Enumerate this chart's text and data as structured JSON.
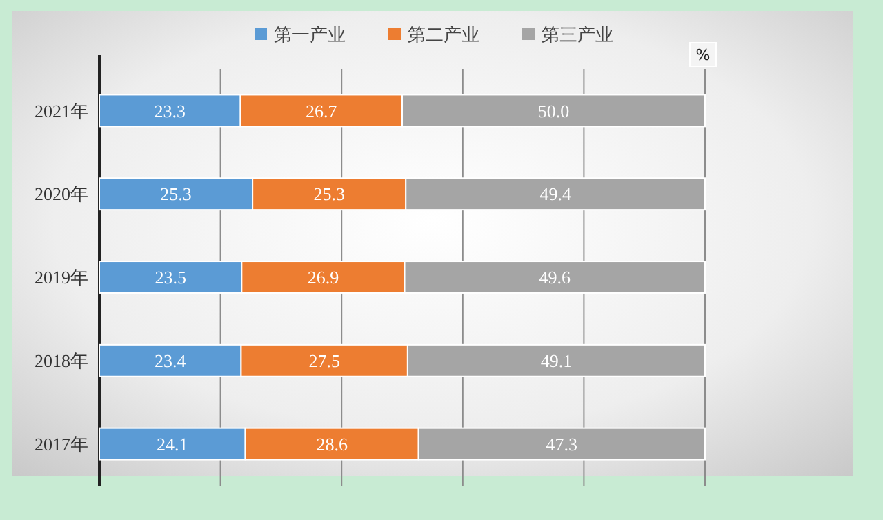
{
  "chart_data": {
    "type": "bar",
    "orientation": "horizontal",
    "stacked": true,
    "categories": [
      "2021年",
      "2020年",
      "2019年",
      "2018年",
      "2017年"
    ],
    "series": [
      {
        "name": "第一产业",
        "color": "#5b9bd5",
        "values": [
          23.3,
          25.3,
          23.5,
          23.4,
          24.1
        ],
        "value_labels": [
          "23.3",
          "25.3",
          "23.5",
          "23.4",
          "24.1"
        ]
      },
      {
        "name": "第二产业",
        "color": "#ed7d31",
        "values": [
          26.7,
          25.3,
          26.9,
          27.5,
          28.6
        ],
        "value_labels": [
          "26.7",
          "25.3",
          "26.9",
          "27.5",
          "28.6"
        ]
      },
      {
        "name": "第三产业",
        "color": "#a5a5a5",
        "values": [
          50.0,
          49.4,
          49.6,
          49.1,
          47.3
        ],
        "value_labels": [
          "50.0",
          "49.4",
          "49.6",
          "49.1",
          "47.3"
        ]
      }
    ],
    "xlabel": "%",
    "xlim": [
      0,
      100
    ],
    "xticks": [
      {
        "value": 0,
        "label": null
      },
      {
        "value": 20,
        "label": null
      },
      {
        "value": 40,
        "label": null
      },
      {
        "value": 60,
        "label": null
      },
      {
        "value": 80,
        "label": null
      },
      {
        "value": 100,
        "label": null
      }
    ],
    "tick_labels": "y",
    "grid": "x",
    "legend": "top"
  }
}
